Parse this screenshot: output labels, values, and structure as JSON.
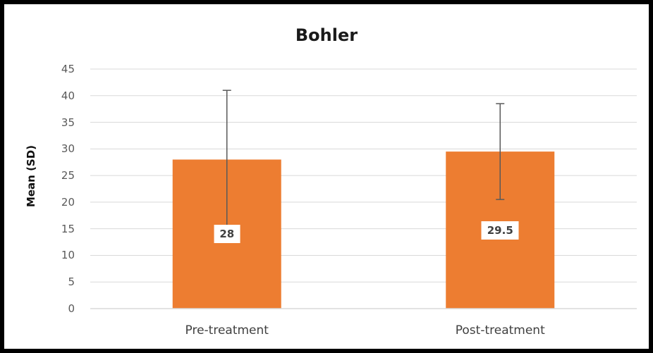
{
  "chart_data": {
    "type": "bar",
    "title": "Bohler",
    "xlabel": "",
    "ylabel": "Mean (SD)",
    "categories": [
      "Pre-treatment",
      "Post-treatment"
    ],
    "values": [
      28,
      29.5
    ],
    "data_labels": [
      "28",
      "29.5"
    ],
    "error_bars": [
      {
        "low": 15,
        "high": 41
      },
      {
        "low": 20.5,
        "high": 38.5
      }
    ],
    "ylim": [
      0,
      45
    ],
    "yticks": [
      "0",
      "5",
      "10",
      "15",
      "20",
      "25",
      "30",
      "35",
      "40",
      "45"
    ],
    "grid": true,
    "legend": "none",
    "bar_color": "#ED7D31"
  }
}
